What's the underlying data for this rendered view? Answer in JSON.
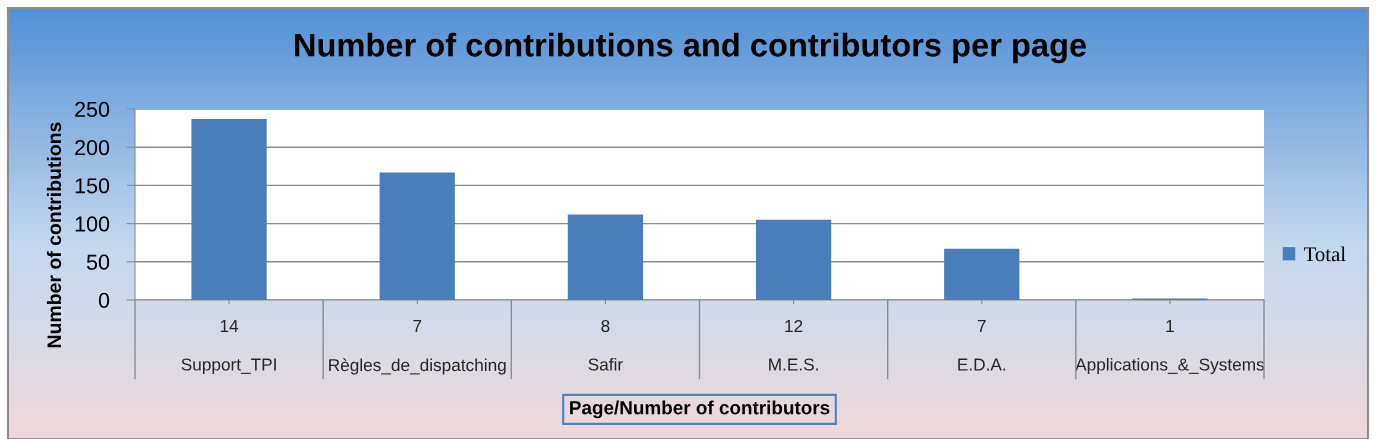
{
  "chart_data": {
    "type": "bar",
    "title": "Number of contributions and contributors per page",
    "xlabel": "Page/Number of contributors",
    "ylabel": "Number of contributions",
    "categories": [
      "14\nSupport_TPI",
      "7\nRègles_de_dispatching",
      "8\nSafir",
      "12\nM.E.S.",
      "7\nE.D.A.",
      "1\nApplications_&_Systems"
    ],
    "series": [
      {
        "name": "Total",
        "color": "#4a7ebb",
        "values": [
          237,
          167,
          112,
          105,
          67,
          2
        ]
      }
    ],
    "ylim": [
      0,
      250
    ],
    "yticks": [
      0,
      50,
      100,
      150,
      200,
      250
    ],
    "grid": "y",
    "legend": "right"
  }
}
